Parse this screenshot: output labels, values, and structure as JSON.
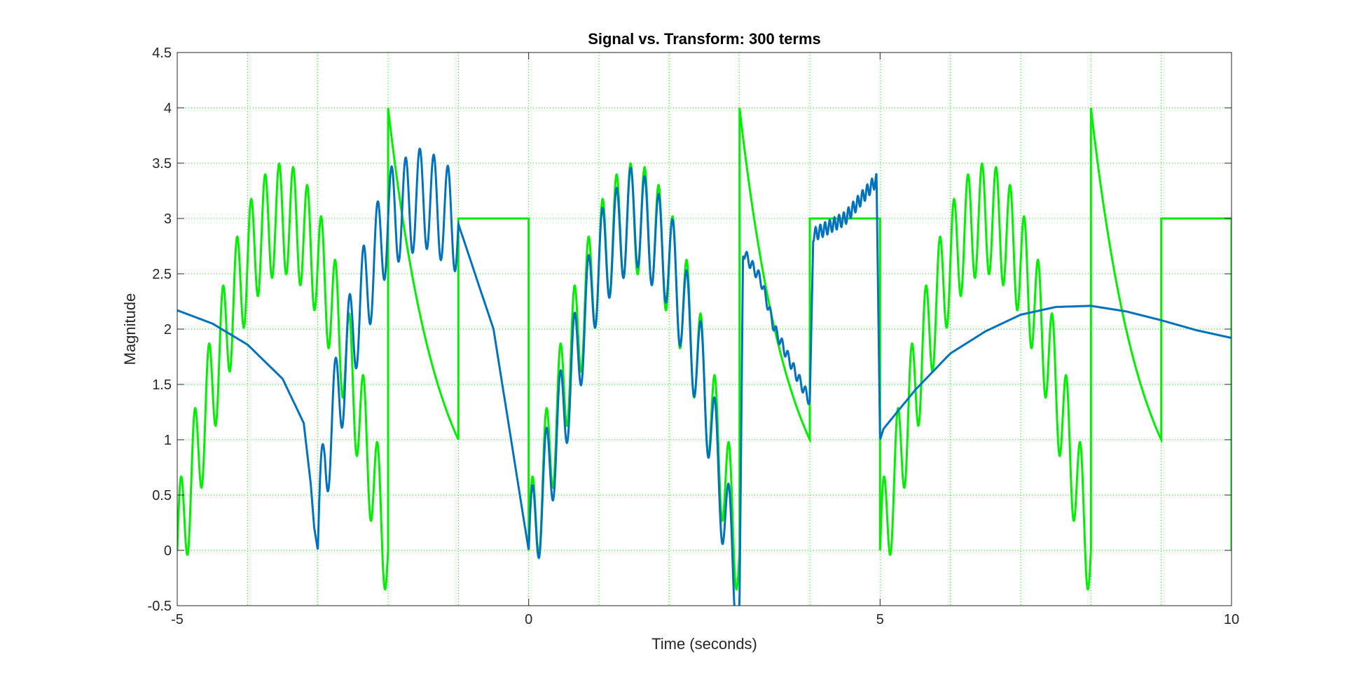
{
  "chart_data": {
    "type": "line",
    "title": "Signal vs. Transform: 300 terms",
    "xlabel": "Time (seconds)",
    "ylabel": "Magnitude",
    "xlim": [
      -5,
      10
    ],
    "ylim": [
      -0.5,
      4.5
    ],
    "xticks": [
      -5,
      0,
      5,
      10
    ],
    "xtick_labels": [
      "-5",
      "0",
      "5",
      "10"
    ],
    "yticks": [
      -0.5,
      0,
      0.5,
      1,
      1.5,
      2,
      2.5,
      3,
      3.5,
      4,
      4.5
    ],
    "ytick_labels": [
      "-0.5",
      "0",
      "0.5",
      "1",
      "1.5",
      "2",
      "2.5",
      "3",
      "3.5",
      "4",
      "4.5"
    ],
    "grid": true,
    "grid_color": "#00ff00",
    "colors": {
      "signal": "#00ee00",
      "transform": "#0072bd",
      "axes": "#262626"
    },
    "series": [
      {
        "key": "signal",
        "color": "#00ee00",
        "period": 5,
        "segments": [
          {
            "t_start": 0,
            "t_end": 3,
            "shape": "3*sin(pi*t/3) + 0.5*sin(10*pi*t)"
          },
          {
            "t_start": 3,
            "t_end": 4,
            "shape": "exponential decay from 4 to 1",
            "values": [
              4,
              1
            ]
          },
          {
            "t_start": 4,
            "t_end": 5,
            "shape": "constant",
            "values": [
              3
            ]
          }
        ],
        "x": [
          -5,
          -4.5,
          -4,
          -3.5,
          -3,
          -2.5,
          -2,
          -1.5,
          -1,
          -0.5,
          0,
          0.5,
          1,
          1.5,
          2,
          2.5,
          3,
          3.5,
          4,
          4.5,
          5,
          5.5,
          6,
          6.5,
          7,
          7.5,
          8,
          8.5,
          9,
          9.5,
          10
        ],
        "y": [
          0,
          1.5,
          2.6,
          3.0,
          2.6,
          1.5,
          4.0,
          2.0,
          3.0,
          3.0,
          0,
          1.5,
          2.6,
          3.0,
          2.6,
          1.5,
          4.0,
          2.0,
          3.0,
          3.0,
          0,
          1.5,
          2.6,
          3.0,
          2.6,
          1.5,
          4.0,
          2.0,
          3.0,
          3.0,
          3.0
        ]
      },
      {
        "key": "transform",
        "color": "#0072bd",
        "x": [
          -5,
          -4.5,
          -4,
          -3.5,
          -3.2,
          -3.1,
          -3.05,
          -3.0,
          -2.9,
          -2.5,
          -2,
          -1.5,
          -1,
          -0.5,
          0,
          0.5,
          1,
          1.5,
          2,
          2.5,
          3.0,
          3.05,
          3.3,
          3.5,
          3.8,
          4.0,
          4.05,
          4.5,
          4.95,
          5.0,
          5.05,
          5.5,
          6,
          6.5,
          7,
          7.5,
          8,
          8.5,
          9,
          9.5,
          10
        ],
        "y": [
          2.17,
          2.05,
          1.86,
          1.55,
          1.15,
          0.6,
          0.2,
          0.0,
          0.85,
          2.0,
          3.0,
          3.2,
          2.95,
          2.0,
          0.0,
          1.3,
          2.6,
          3.05,
          2.65,
          1.5,
          -0.45,
          2.7,
          2.45,
          2.0,
          1.6,
          1.35,
          2.85,
          3.0,
          3.35,
          1.0,
          1.1,
          1.45,
          1.78,
          1.98,
          2.13,
          2.2,
          2.21,
          2.16,
          2.08,
          1.99,
          1.92
        ]
      }
    ]
  }
}
